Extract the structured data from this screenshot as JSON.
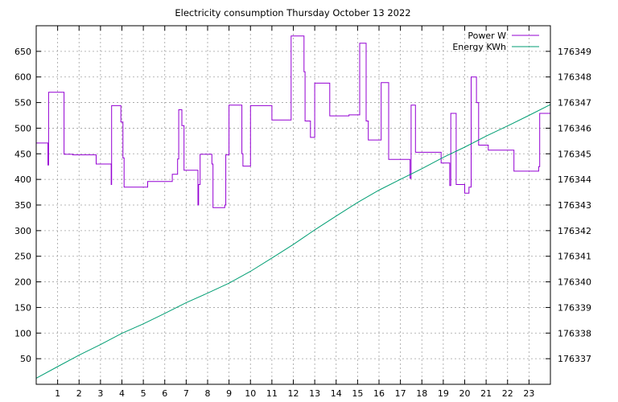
{
  "chart_data": {
    "type": "line",
    "title": "Electricity consumption Thursday October 13 2022",
    "xlabel": "",
    "ylabel": "",
    "y2label": "",
    "xlim": [
      0,
      24
    ],
    "ylim": [
      0,
      700
    ],
    "y2lim": [
      176336.0,
      176350.0
    ],
    "x_ticks": [
      1,
      2,
      3,
      4,
      5,
      6,
      7,
      8,
      9,
      10,
      11,
      12,
      13,
      14,
      15,
      16,
      17,
      18,
      19,
      20,
      21,
      22,
      23
    ],
    "y_ticks": [
      50,
      100,
      150,
      200,
      250,
      300,
      350,
      400,
      450,
      500,
      550,
      600,
      650
    ],
    "y2_ticks": [
      176337,
      176338,
      176339,
      176340,
      176341,
      176342,
      176343,
      176344,
      176345,
      176346,
      176347,
      176348,
      176349
    ],
    "grid": true,
    "legend": "top-right",
    "series": [
      {
        "name": "Power W",
        "axis": "y",
        "style": "step",
        "color": "#9400d3",
        "x": [
          0,
          0.55,
          0.58,
          0.62,
          1.3,
          1.7,
          2.8,
          3.5,
          3.52,
          3.55,
          3.95,
          4.05,
          4.1,
          5.2,
          6.35,
          6.6,
          6.65,
          6.8,
          6.9,
          7.55,
          7.58,
          7.65,
          8.2,
          8.25,
          8.8,
          8.85,
          9.0,
          9.6,
          9.65,
          10.0,
          11.0,
          11.9,
          12.5,
          12.55,
          12.8,
          13.0,
          13.7,
          14.6,
          15.1,
          15.4,
          15.5,
          16.1,
          16.45,
          17.45,
          17.5,
          17.7,
          18.9,
          19.3,
          19.35,
          19.6,
          20.0,
          20.2,
          20.3,
          20.55,
          20.65,
          21.1,
          22.3,
          23.45,
          23.5,
          24
        ],
        "y": [
          471,
          428,
          570,
          570,
          449,
          448,
          430,
          390,
          544,
          544,
          512,
          442,
          385,
          396,
          410,
          440,
          536,
          505,
          418,
          350,
          390,
          449,
          430,
          345,
          350,
          448,
          545,
          450,
          426,
          544,
          516,
          680,
          610,
          514,
          482,
          588,
          524,
          526,
          666,
          514,
          477,
          589,
          439,
          402,
          545,
          453,
          432,
          388,
          529,
          390,
          373,
          385,
          600,
          550,
          467,
          457,
          416,
          425,
          529,
          529
        ]
      },
      {
        "name": "Energy KWh",
        "axis": "y2",
        "style": "line",
        "color": "#009e73",
        "x": [
          0,
          1,
          2,
          3,
          4,
          5,
          6,
          7,
          8,
          9,
          10,
          11,
          12,
          13,
          14,
          15,
          16,
          17,
          18,
          19,
          20,
          21,
          22,
          23,
          24
        ],
        "y": [
          176336.24,
          176336.69,
          176337.14,
          176337.55,
          176337.99,
          176338.36,
          176338.77,
          176339.19,
          176339.56,
          176339.95,
          176340.41,
          176340.93,
          176341.46,
          176342.03,
          176342.57,
          176343.1,
          176343.58,
          176344.0,
          176344.42,
          176344.86,
          176345.26,
          176345.69,
          176346.09,
          176346.5,
          176346.92
        ]
      }
    ]
  }
}
